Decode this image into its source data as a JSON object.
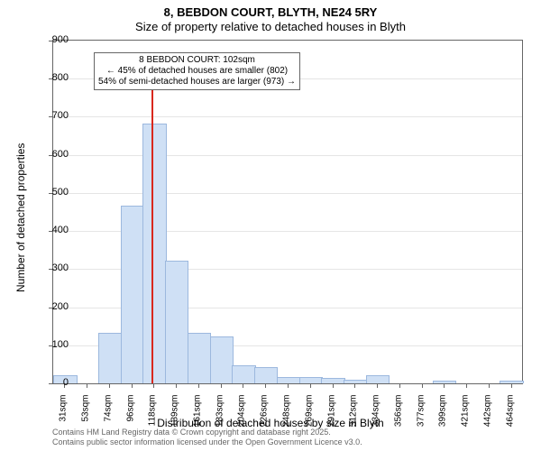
{
  "chart": {
    "type": "histogram",
    "title_line1": "8, BEBDON COURT, BLYTH, NE24 5RY",
    "title_line2": "Size of property relative to detached houses in Blyth",
    "xlabel": "Distribution of detached houses by size in Blyth",
    "ylabel": "Number of detached properties",
    "ylim": [
      0,
      900
    ],
    "ytick_step": 100,
    "yticks": [
      0,
      100,
      200,
      300,
      400,
      500,
      600,
      700,
      800,
      900
    ],
    "xtick_labels": [
      "31sqm",
      "53sqm",
      "74sqm",
      "96sqm",
      "118sqm",
      "139sqm",
      "161sqm",
      "183sqm",
      "204sqm",
      "226sqm",
      "248sqm",
      "269sqm",
      "291sqm",
      "312sqm",
      "334sqm",
      "356sqm",
      "377sqm",
      "399sqm",
      "421sqm",
      "442sqm",
      "464sqm"
    ],
    "bars": {
      "count": 21,
      "values": [
        20,
        0,
        130,
        465,
        680,
        320,
        130,
        120,
        45,
        40,
        15,
        15,
        12,
        8,
        20,
        0,
        0,
        5,
        0,
        0,
        5
      ],
      "fill_color": "#cfe0f5",
      "border_color": "#9cb8de",
      "width_ratio": 0.98
    },
    "marker_line": {
      "x_ratio": 0.21,
      "color": "#d9281d",
      "height_value": 850
    },
    "annotation": {
      "lines": [
        "8 BEBDON COURT: 102sqm",
        "← 45% of detached houses are smaller (802)",
        "54% of semi-detached houses are larger (973) →"
      ],
      "top_value": 870
    },
    "grid_color": "#e5e5e5",
    "background_color": "#ffffff",
    "axis_color": "#666666",
    "title_fontsize": 13,
    "label_fontsize": 12,
    "tick_fontsize": 11,
    "footer": {
      "line1": "Contains HM Land Registry data © Crown copyright and database right 2025.",
      "line2": "Contains public sector information licensed under the Open Government Licence v3.0.",
      "color": "#666666",
      "fontsize": 9
    }
  }
}
